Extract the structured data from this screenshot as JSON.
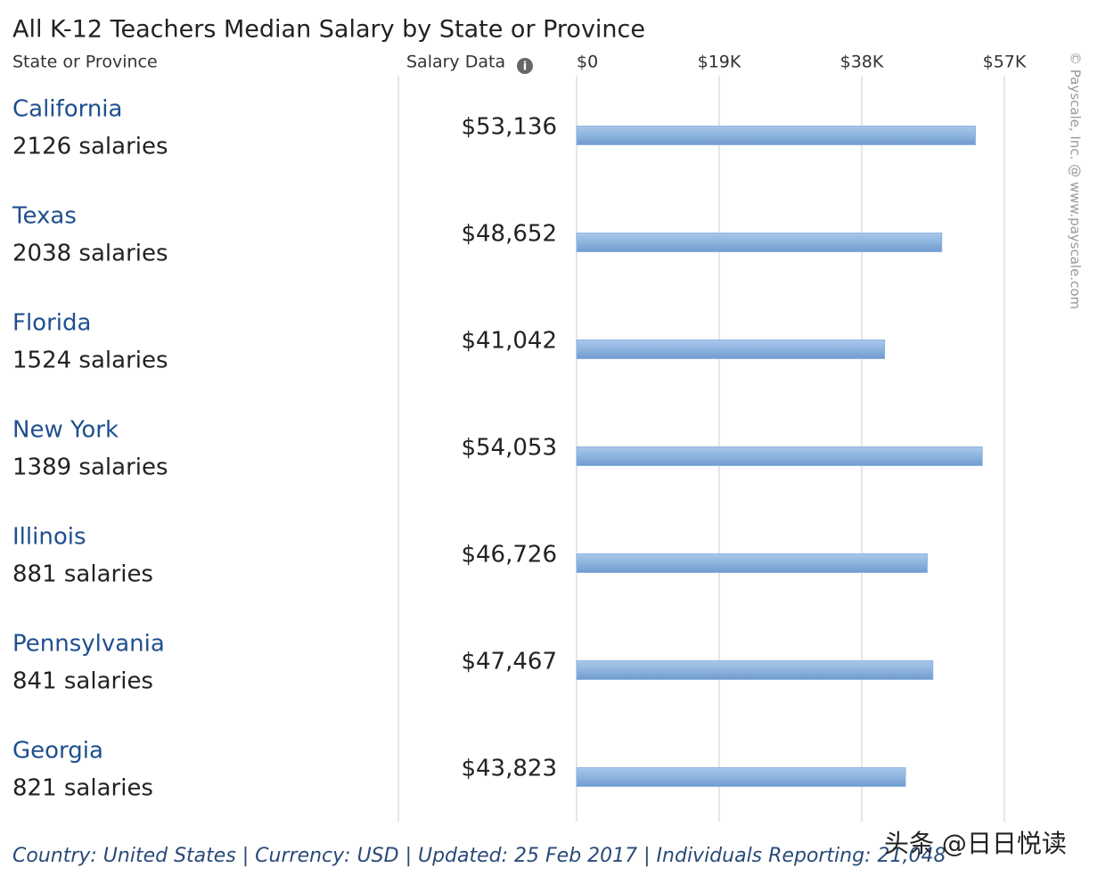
{
  "chart_data": {
    "type": "bar",
    "orientation": "horizontal",
    "title": "All K-12 Teachers Median Salary by State or Province",
    "category_header": "State or Province",
    "value_header": "Salary Data",
    "categories": [
      "California",
      "Texas",
      "Florida",
      "New York",
      "Illinois",
      "Pennsylvania",
      "Georgia"
    ],
    "category_notes": [
      "2126 salaries",
      "2038 salaries",
      "1524 salaries",
      "1389 salaries",
      "881 salaries",
      "841 salaries",
      "821 salaries"
    ],
    "values": [
      53136,
      48652,
      41042,
      54053,
      46726,
      47467,
      43823
    ],
    "value_labels": [
      "$53,136",
      "$48,652",
      "$41,042",
      "$54,053",
      "$46,726",
      "$47,467",
      "$43,823"
    ],
    "color": "#8db4de",
    "xlim": [
      0,
      57000
    ],
    "xticks": [
      {
        "value": 0,
        "label": "$0"
      },
      {
        "value": 19000,
        "label": "$19K"
      },
      {
        "value": 38000,
        "label": "$38K"
      },
      {
        "value": 57000,
        "label": "$57K"
      }
    ],
    "grid": true,
    "footer": "Country: United States | Currency: USD | Updated: 25 Feb 2017 | Individuals Reporting: 21,048",
    "copyright": "© Payscale, Inc. @ www.payscale.com",
    "watermark": "头条 @日日悦读"
  }
}
